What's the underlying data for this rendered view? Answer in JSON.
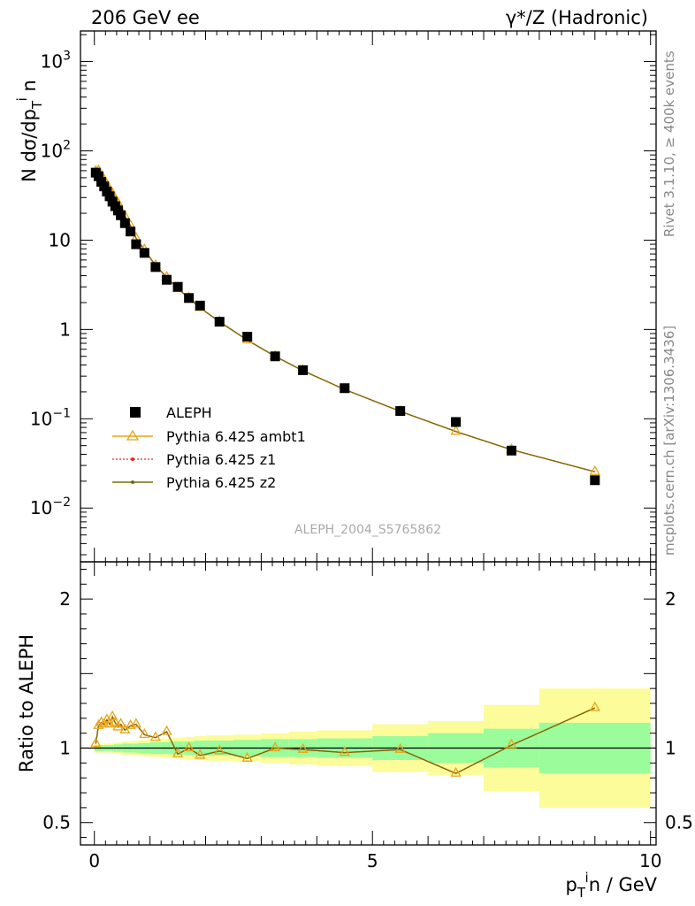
{
  "header": {
    "left_title": "206 GeV ee",
    "right_title": "γ*/Z (Hadronic)"
  },
  "side_labels": {
    "rivet": "Rivet 3.1.10, ≥ 400k events",
    "mcplots": "mcplots.cern.ch [arXiv:1306.3436]"
  },
  "analysis_id": "ALEPH_2004_S5765862",
  "colors": {
    "data": "#000000",
    "ambt1": "#e8a317",
    "z1": "#e8262b",
    "z2": "#7a6a0a",
    "band_inner": "#9afc9a",
    "band_outer": "#fcfc9a"
  },
  "chart_data": [
    {
      "type": "scatter",
      "panel": "main",
      "ylabel": "N dσ/dp_T^i n",
      "ylabel_parts": {
        "main": "N dσ/dp",
        "sub": "T",
        "sup": "i",
        "tail": " n"
      },
      "yscale": "log",
      "ylim": [
        0.0025,
        2200
      ],
      "xlim": [
        -0.25,
        10.1
      ],
      "yticks": [
        {
          "value": 0.01,
          "base": "10",
          "exp": "−2"
        },
        {
          "value": 0.1,
          "base": "10",
          "exp": "−1"
        },
        {
          "value": 1,
          "base": "1",
          "exp": ""
        },
        {
          "value": 10,
          "base": "10",
          "exp": ""
        },
        {
          "value": 100,
          "base": "10",
          "exp": "2"
        },
        {
          "value": 1000,
          "base": "10",
          "exp": "3"
        }
      ],
      "x": [
        0.025,
        0.075,
        0.125,
        0.175,
        0.225,
        0.275,
        0.325,
        0.375,
        0.425,
        0.475,
        0.55,
        0.65,
        0.75,
        0.9,
        1.1,
        1.3,
        1.5,
        1.7,
        1.9,
        2.25,
        2.75,
        3.25,
        3.75,
        4.5,
        5.5,
        6.5,
        7.5,
        9.0
      ],
      "series": [
        {
          "name": "ALEPH",
          "marker": "square",
          "values": [
            57,
            52,
            45,
            40,
            35,
            31,
            27,
            24,
            21.5,
            19,
            15.5,
            12.5,
            9.0,
            7.2,
            5.0,
            3.6,
            3.0,
            2.25,
            1.85,
            1.22,
            0.83,
            0.5,
            0.35,
            0.22,
            0.122,
            0.092,
            0.044,
            0.0205
          ]
        },
        {
          "name": "Pythia 6.425 ambt1",
          "marker": "triangle",
          "values": [
            59,
            60,
            53,
            47,
            42,
            36,
            33,
            28,
            26,
            21.5,
            18.5,
            14.5,
            10.5,
            7.8,
            5.2,
            3.85,
            2.85,
            2.25,
            1.75,
            1.22,
            0.76,
            0.5,
            0.345,
            0.213,
            0.121,
            0.072,
            0.045,
            0.0255
          ]
        },
        {
          "name": "Pythia 6.425 z1",
          "marker": "dot",
          "values": [
            59,
            60,
            53,
            47,
            42,
            36,
            33,
            28,
            26,
            21.5,
            18.5,
            14.5,
            10.5,
            7.8,
            5.2,
            3.85,
            2.85,
            2.25,
            1.75,
            1.22,
            0.76,
            0.5,
            0.345,
            0.213,
            0.121,
            0.072,
            0.045,
            0.0255
          ]
        },
        {
          "name": "Pythia 6.425 z2",
          "marker": "dot",
          "values": [
            59,
            60,
            53,
            47,
            42,
            36,
            33,
            28,
            26,
            21.5,
            18.5,
            14.5,
            10.5,
            7.8,
            5.2,
            3.85,
            2.85,
            2.25,
            1.75,
            1.22,
            0.76,
            0.5,
            0.345,
            0.213,
            0.121,
            0.072,
            0.045,
            0.0255
          ]
        }
      ]
    },
    {
      "type": "line",
      "panel": "ratio",
      "ylabel": "Ratio to ALEPH",
      "xlabel": "p_T^i n / GeV",
      "xlabel_parts": {
        "main": "p",
        "sub": "T",
        "sup": "i",
        "tail": "n / GeV"
      },
      "yscale": "linear",
      "ylim": [
        0.35,
        2.25
      ],
      "xlim": [
        -0.25,
        10.1
      ],
      "yticks": [
        0.5,
        1,
        2
      ],
      "ytick_labels": [
        "0.5",
        "1",
        "2"
      ],
      "xticks": [
        0,
        5,
        10
      ],
      "xtick_labels": [
        "0",
        "5",
        "10"
      ],
      "bands": {
        "edges": [
          0,
          0.05,
          0.1,
          0.15,
          0.2,
          0.25,
          0.3,
          0.35,
          0.4,
          0.45,
          0.5,
          0.6,
          0.7,
          0.8,
          1.0,
          1.2,
          1.4,
          1.6,
          1.8,
          2.0,
          2.5,
          3.0,
          3.5,
          4.0,
          5.0,
          6.0,
          7.0,
          8.0,
          10.0
        ],
        "inner": [
          0.02,
          0.02,
          0.02,
          0.02,
          0.02,
          0.02,
          0.02,
          0.025,
          0.025,
          0.025,
          0.03,
          0.03,
          0.03,
          0.035,
          0.04,
          0.04,
          0.045,
          0.045,
          0.05,
          0.05,
          0.055,
          0.06,
          0.06,
          0.065,
          0.08,
          0.1,
          0.13,
          0.17
        ],
        "outer": [
          0.03,
          0.03,
          0.03,
          0.03,
          0.03,
          0.03,
          0.035,
          0.035,
          0.04,
          0.04,
          0.045,
          0.045,
          0.05,
          0.055,
          0.06,
          0.065,
          0.07,
          0.075,
          0.08,
          0.085,
          0.09,
          0.1,
          0.11,
          0.12,
          0.16,
          0.18,
          0.29,
          0.4
        ]
      },
      "series": [
        {
          "name": "Pythia 6.425 ambt1",
          "values": [
            1.03,
            1.15,
            1.17,
            1.16,
            1.19,
            1.16,
            1.21,
            1.17,
            1.14,
            1.16,
            1.12,
            1.15,
            1.16,
            1.09,
            1.07,
            1.11,
            0.96,
            1.0,
            0.95,
            0.98,
            0.93,
            1.0,
            0.99,
            0.97,
            0.99,
            0.83,
            1.02,
            1.27
          ]
        },
        {
          "name": "Pythia 6.425 z1",
          "values": [
            1.03,
            1.15,
            1.17,
            1.16,
            1.19,
            1.16,
            1.21,
            1.17,
            1.14,
            1.16,
            1.12,
            1.15,
            1.16,
            1.09,
            1.07,
            1.11,
            0.96,
            1.0,
            0.95,
            0.98,
            0.93,
            1.0,
            0.99,
            0.97,
            0.99,
            0.83,
            1.02,
            1.27
          ]
        },
        {
          "name": "Pythia 6.425 z2",
          "values": [
            1.03,
            1.15,
            1.17,
            1.16,
            1.19,
            1.16,
            1.21,
            1.17,
            1.14,
            1.16,
            1.12,
            1.15,
            1.16,
            1.09,
            1.07,
            1.11,
            0.96,
            1.0,
            0.95,
            0.98,
            0.93,
            1.0,
            0.99,
            0.97,
            0.99,
            0.83,
            1.02,
            1.27
          ]
        }
      ]
    }
  ]
}
